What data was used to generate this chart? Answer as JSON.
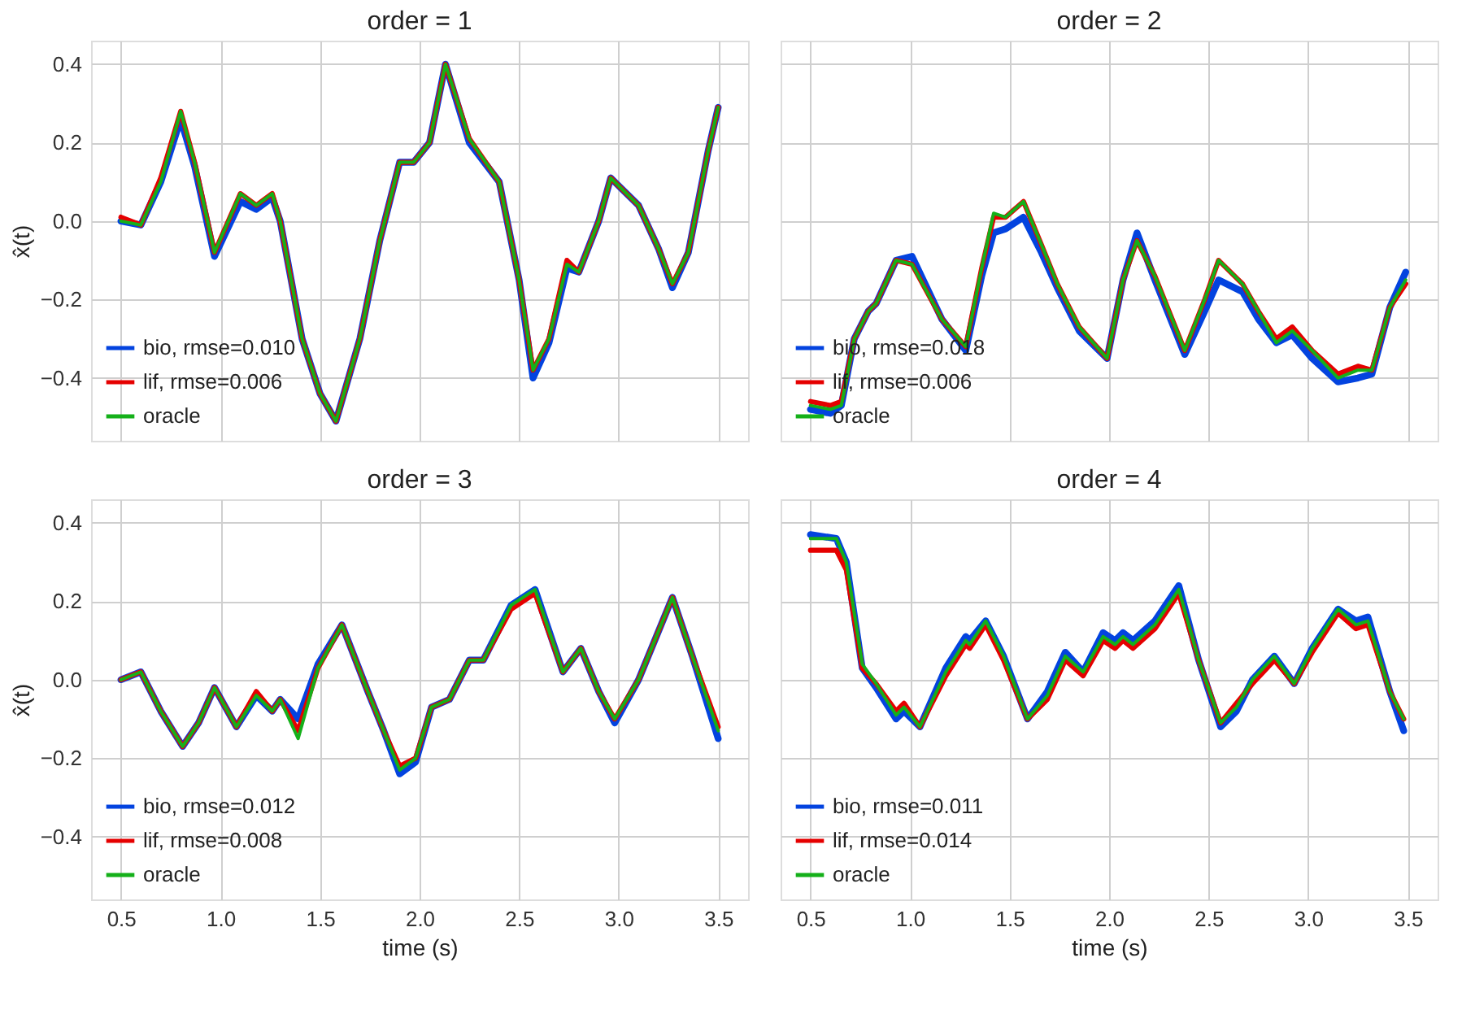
{
  "chart_data": [
    {
      "type": "line",
      "title": "order = 1",
      "ylabel": "x̂(t)",
      "xlim": [
        0.35,
        3.65
      ],
      "ylim": [
        -0.56,
        0.46
      ],
      "xticks": [
        0.5,
        1,
        1.5,
        2,
        2.5,
        3,
        3.5
      ],
      "yticks": [
        {
          "value": -0.4,
          "label": "−0.4"
        },
        {
          "value": -0.2,
          "label": "−0.2"
        },
        {
          "value": 0,
          "label": "0.0"
        },
        0.2,
        0.4
      ],
      "tick_labels": "y",
      "grid": true,
      "legend": "bottom left",
      "line_style": "solid",
      "marker": "none",
      "series": [
        {
          "name": "bio, rmse=0.010",
          "color": "#0343df",
          "x": [
            0.5,
            0.6,
            0.7,
            0.8,
            0.87,
            0.97,
            1.1,
            1.18,
            1.26,
            1.3,
            1.41,
            1.5,
            1.58,
            1.7,
            1.8,
            1.9,
            1.97,
            2.05,
            2.13,
            2.25,
            2.4,
            2.5,
            2.57,
            2.65,
            2.74,
            2.8,
            2.9,
            2.96,
            3.1,
            3.2,
            3.27,
            3.35,
            3.45,
            3.5
          ],
          "values": [
            0.0,
            -0.01,
            0.1,
            0.26,
            0.14,
            -0.09,
            0.05,
            0.03,
            0.06,
            0.0,
            -0.3,
            -0.44,
            -0.51,
            -0.3,
            -0.05,
            0.15,
            0.15,
            0.2,
            0.4,
            0.2,
            0.1,
            -0.15,
            -0.4,
            -0.31,
            -0.12,
            -0.13,
            0.0,
            0.11,
            0.04,
            -0.07,
            -0.17,
            -0.08,
            0.18,
            0.29
          ]
        },
        {
          "name": "lif, rmse=0.006",
          "color": "#e50000",
          "x": [
            0.5,
            0.6,
            0.7,
            0.8,
            0.87,
            0.97,
            1.1,
            1.18,
            1.26,
            1.3,
            1.41,
            1.5,
            1.58,
            1.7,
            1.8,
            1.9,
            1.97,
            2.05,
            2.13,
            2.25,
            2.4,
            2.5,
            2.57,
            2.65,
            2.74,
            2.8,
            2.9,
            2.96,
            3.1,
            3.2,
            3.27,
            3.35,
            3.45,
            3.5
          ],
          "values": [
            0.01,
            -0.01,
            0.11,
            0.28,
            0.15,
            -0.08,
            0.07,
            0.04,
            0.07,
            0.0,
            -0.3,
            -0.44,
            -0.51,
            -0.3,
            -0.05,
            0.15,
            0.15,
            0.2,
            0.4,
            0.21,
            0.1,
            -0.15,
            -0.38,
            -0.3,
            -0.1,
            -0.13,
            0.0,
            0.11,
            0.04,
            -0.07,
            -0.16,
            -0.08,
            0.18,
            0.29
          ]
        },
        {
          "name": "oracle",
          "color": "#15b01a",
          "x": [
            0.5,
            0.6,
            0.7,
            0.8,
            0.87,
            0.97,
            1.1,
            1.18,
            1.26,
            1.3,
            1.41,
            1.5,
            1.58,
            1.7,
            1.8,
            1.9,
            1.97,
            2.05,
            2.13,
            2.25,
            2.4,
            2.5,
            2.57,
            2.65,
            2.74,
            2.8,
            2.9,
            2.96,
            3.1,
            3.2,
            3.27,
            3.35,
            3.45,
            3.5
          ],
          "values": [
            0.0,
            -0.01,
            0.1,
            0.28,
            0.15,
            -0.08,
            0.07,
            0.04,
            0.07,
            0.0,
            -0.3,
            -0.44,
            -0.51,
            -0.3,
            -0.05,
            0.15,
            0.15,
            0.2,
            0.4,
            0.21,
            0.1,
            -0.15,
            -0.38,
            -0.3,
            -0.11,
            -0.13,
            0.0,
            0.11,
            0.04,
            -0.07,
            -0.16,
            -0.08,
            0.18,
            0.29
          ]
        }
      ]
    },
    {
      "type": "line",
      "title": "order = 2",
      "xlim": [
        0.35,
        3.65
      ],
      "ylim": [
        -0.56,
        0.46
      ],
      "xticks": [
        0.5,
        1,
        1.5,
        2,
        2.5,
        3,
        3.5
      ],
      "yticks": [
        -0.4,
        -0.2,
        0,
        0.2,
        0.4
      ],
      "tick_labels": false,
      "grid": true,
      "legend": "bottom left",
      "line_style": "solid",
      "marker": "none",
      "series": [
        {
          "name": "bio, rmse=0.018",
          "color": "#0343df",
          "x": [
            0.5,
            0.6,
            0.655,
            0.72,
            0.79,
            0.83,
            0.93,
            1.01,
            1.16,
            1.28,
            1.36,
            1.42,
            1.48,
            1.57,
            1.66,
            1.74,
            1.85,
            1.99,
            2.07,
            2.14,
            2.23,
            2.38,
            2.48,
            2.55,
            2.67,
            2.75,
            2.84,
            2.92,
            3.02,
            3.15,
            3.25,
            3.32,
            3.41,
            3.49
          ],
          "values": [
            -0.48,
            -0.49,
            -0.47,
            -0.3,
            -0.23,
            -0.21,
            -0.1,
            -0.09,
            -0.25,
            -0.33,
            -0.14,
            -0.03,
            -0.02,
            0.01,
            -0.08,
            -0.17,
            -0.28,
            -0.35,
            -0.15,
            -0.03,
            -0.15,
            -0.34,
            -0.23,
            -0.15,
            -0.18,
            -0.25,
            -0.31,
            -0.29,
            -0.35,
            -0.41,
            -0.4,
            -0.39,
            -0.22,
            -0.13
          ]
        },
        {
          "name": "lif, rmse=0.006",
          "color": "#e50000",
          "x": [
            0.5,
            0.6,
            0.655,
            0.72,
            0.79,
            0.83,
            0.93,
            1.01,
            1.16,
            1.28,
            1.36,
            1.42,
            1.48,
            1.57,
            1.66,
            1.74,
            1.85,
            1.99,
            2.07,
            2.14,
            2.23,
            2.38,
            2.48,
            2.55,
            2.67,
            2.75,
            2.84,
            2.92,
            3.02,
            3.15,
            3.25,
            3.32,
            3.41,
            3.49
          ],
          "values": [
            -0.46,
            -0.47,
            -0.46,
            -0.3,
            -0.23,
            -0.21,
            -0.1,
            -0.11,
            -0.25,
            -0.32,
            -0.12,
            0.01,
            0.01,
            0.05,
            -0.06,
            -0.16,
            -0.27,
            -0.35,
            -0.15,
            -0.05,
            -0.14,
            -0.33,
            -0.2,
            -0.1,
            -0.16,
            -0.23,
            -0.3,
            -0.27,
            -0.33,
            -0.39,
            -0.37,
            -0.38,
            -0.22,
            -0.16
          ]
        },
        {
          "name": "oracle",
          "color": "#15b01a",
          "x": [
            0.5,
            0.6,
            0.655,
            0.72,
            0.79,
            0.83,
            0.93,
            1.01,
            1.16,
            1.28,
            1.36,
            1.42,
            1.48,
            1.57,
            1.66,
            1.74,
            1.85,
            1.99,
            2.07,
            2.14,
            2.23,
            2.38,
            2.48,
            2.55,
            2.67,
            2.75,
            2.84,
            2.92,
            3.02,
            3.15,
            3.25,
            3.32,
            3.41,
            3.49
          ],
          "values": [
            -0.47,
            -0.48,
            -0.47,
            -0.3,
            -0.23,
            -0.21,
            -0.1,
            -0.11,
            -0.25,
            -0.32,
            -0.12,
            0.02,
            0.01,
            0.05,
            -0.06,
            -0.16,
            -0.27,
            -0.35,
            -0.15,
            -0.05,
            -0.14,
            -0.33,
            -0.2,
            -0.1,
            -0.16,
            -0.23,
            -0.31,
            -0.28,
            -0.33,
            -0.4,
            -0.38,
            -0.38,
            -0.22,
            -0.15
          ]
        }
      ]
    },
    {
      "type": "line",
      "title": "order = 3",
      "xlabel": "time (s)",
      "ylabel": "x̂(t)",
      "xlim": [
        0.35,
        3.65
      ],
      "ylim": [
        -0.56,
        0.46
      ],
      "xticks": [
        0.5,
        {
          "value": 1,
          "label": "1.0"
        },
        1.5,
        {
          "value": 2,
          "label": "2.0"
        },
        2.5,
        {
          "value": 3,
          "label": "3.0"
        },
        3.5
      ],
      "yticks": [
        {
          "value": -0.4,
          "label": "−0.4"
        },
        {
          "value": -0.2,
          "label": "−0.2"
        },
        {
          "value": 0,
          "label": "0.0"
        },
        0.2,
        0.4
      ],
      "grid": true,
      "legend": "bottom left",
      "line_style": "solid",
      "marker": "none",
      "series": [
        {
          "name": "bio, rmse=0.012",
          "color": "#0343df",
          "x": [
            0.5,
            0.6,
            0.7,
            0.81,
            0.89,
            0.97,
            1.08,
            1.18,
            1.26,
            1.3,
            1.39,
            1.49,
            1.61,
            1.74,
            1.82,
            1.9,
            1.98,
            2.06,
            2.15,
            2.25,
            2.32,
            2.46,
            2.58,
            2.72,
            2.81,
            2.9,
            2.98,
            3.1,
            3.27,
            3.37,
            3.5
          ],
          "values": [
            0.0,
            0.02,
            -0.08,
            -0.17,
            -0.11,
            -0.02,
            -0.12,
            -0.04,
            -0.08,
            -0.05,
            -0.1,
            0.04,
            0.14,
            -0.03,
            -0.13,
            -0.24,
            -0.21,
            -0.07,
            -0.05,
            0.05,
            0.05,
            0.19,
            0.23,
            0.02,
            0.08,
            -0.03,
            -0.11,
            0.0,
            0.21,
            0.06,
            -0.15
          ]
        },
        {
          "name": "lif, rmse=0.008",
          "color": "#e50000",
          "x": [
            0.5,
            0.6,
            0.7,
            0.81,
            0.89,
            0.97,
            1.08,
            1.18,
            1.26,
            1.3,
            1.39,
            1.49,
            1.61,
            1.74,
            1.82,
            1.9,
            1.98,
            2.06,
            2.15,
            2.25,
            2.32,
            2.46,
            2.58,
            2.72,
            2.81,
            2.9,
            2.98,
            3.1,
            3.27,
            3.37,
            3.5
          ],
          "values": [
            0.0,
            0.02,
            -0.08,
            -0.17,
            -0.11,
            -0.02,
            -0.12,
            -0.03,
            -0.08,
            -0.05,
            -0.13,
            0.03,
            0.14,
            -0.03,
            -0.13,
            -0.22,
            -0.2,
            -0.07,
            -0.05,
            0.05,
            0.05,
            0.18,
            0.22,
            0.02,
            0.08,
            -0.03,
            -0.1,
            0.0,
            0.21,
            0.06,
            -0.12
          ]
        },
        {
          "name": "oracle",
          "color": "#15b01a",
          "x": [
            0.5,
            0.6,
            0.7,
            0.81,
            0.89,
            0.97,
            1.08,
            1.18,
            1.26,
            1.3,
            1.39,
            1.49,
            1.61,
            1.74,
            1.82,
            1.9,
            1.98,
            2.06,
            2.15,
            2.25,
            2.32,
            2.46,
            2.58,
            2.72,
            2.81,
            2.9,
            2.98,
            3.1,
            3.27,
            3.37,
            3.5
          ],
          "values": [
            0.0,
            0.02,
            -0.08,
            -0.17,
            -0.11,
            -0.02,
            -0.12,
            -0.04,
            -0.08,
            -0.05,
            -0.15,
            0.03,
            0.14,
            -0.03,
            -0.13,
            -0.23,
            -0.2,
            -0.07,
            -0.05,
            0.05,
            0.05,
            0.19,
            0.23,
            0.02,
            0.08,
            -0.03,
            -0.1,
            0.0,
            0.21,
            0.06,
            -0.13
          ]
        }
      ]
    },
    {
      "type": "line",
      "title": "order = 4",
      "xlabel": "time (s)",
      "xlim": [
        0.35,
        3.65
      ],
      "ylim": [
        -0.56,
        0.46
      ],
      "xticks": [
        0.5,
        {
          "value": 1,
          "label": "1.0"
        },
        1.5,
        {
          "value": 2,
          "label": "2.0"
        },
        2.5,
        {
          "value": 3,
          "label": "3.0"
        },
        3.5
      ],
      "yticks": [
        -0.4,
        -0.2,
        0,
        0.2,
        0.4
      ],
      "tick_labels": "x",
      "grid": true,
      "legend": "bottom left",
      "line_style": "solid",
      "marker": "none",
      "series": [
        {
          "name": "bio, rmse=0.011",
          "color": "#0343df",
          "x": [
            0.5,
            0.63,
            0.68,
            0.76,
            0.83,
            0.93,
            0.97,
            1.05,
            1.18,
            1.28,
            1.3,
            1.38,
            1.47,
            1.59,
            1.69,
            1.78,
            1.87,
            1.97,
            2.03,
            2.07,
            2.12,
            2.23,
            2.35,
            2.45,
            2.56,
            2.64,
            2.72,
            2.83,
            2.93,
            3.02,
            3.15,
            3.24,
            3.3,
            3.41,
            3.48
          ],
          "values": [
            0.37,
            0.36,
            0.3,
            0.03,
            -0.02,
            -0.1,
            -0.08,
            -0.12,
            0.03,
            0.11,
            0.1,
            0.15,
            0.06,
            -0.1,
            -0.03,
            0.07,
            0.02,
            0.12,
            0.1,
            0.12,
            0.1,
            0.15,
            0.24,
            0.05,
            -0.12,
            -0.08,
            0.0,
            0.06,
            -0.01,
            0.08,
            0.18,
            0.15,
            0.16,
            -0.03,
            -0.13
          ]
        },
        {
          "name": "lif, rmse=0.014",
          "color": "#e50000",
          "x": [
            0.5,
            0.63,
            0.68,
            0.76,
            0.83,
            0.93,
            0.97,
            1.05,
            1.18,
            1.28,
            1.3,
            1.38,
            1.47,
            1.59,
            1.69,
            1.78,
            1.87,
            1.97,
            2.03,
            2.07,
            2.12,
            2.23,
            2.35,
            2.45,
            2.56,
            2.64,
            2.72,
            2.83,
            2.93,
            3.02,
            3.15,
            3.24,
            3.3,
            3.41,
            3.48
          ],
          "values": [
            0.33,
            0.33,
            0.28,
            0.03,
            -0.01,
            -0.08,
            -0.06,
            -0.12,
            0.01,
            0.09,
            0.08,
            0.14,
            0.05,
            -0.1,
            -0.05,
            0.05,
            0.01,
            0.1,
            0.08,
            0.1,
            0.08,
            0.13,
            0.22,
            0.05,
            -0.11,
            -0.06,
            -0.01,
            0.05,
            -0.01,
            0.07,
            0.17,
            0.13,
            0.14,
            -0.03,
            -0.1
          ]
        },
        {
          "name": "oracle",
          "color": "#15b01a",
          "x": [
            0.5,
            0.63,
            0.68,
            0.76,
            0.83,
            0.93,
            0.97,
            1.05,
            1.18,
            1.28,
            1.3,
            1.38,
            1.47,
            1.59,
            1.69,
            1.78,
            1.87,
            1.97,
            2.03,
            2.07,
            2.12,
            2.23,
            2.35,
            2.45,
            2.56,
            2.64,
            2.72,
            2.83,
            2.93,
            3.02,
            3.15,
            3.24,
            3.3,
            3.41,
            3.48
          ],
          "values": [
            0.36,
            0.36,
            0.3,
            0.04,
            -0.01,
            -0.09,
            -0.07,
            -0.12,
            0.02,
            0.1,
            0.09,
            0.15,
            0.06,
            -0.1,
            -0.04,
            0.06,
            0.02,
            0.11,
            0.09,
            0.11,
            0.09,
            0.14,
            0.23,
            0.05,
            -0.11,
            -0.07,
            0.0,
            0.06,
            -0.01,
            0.08,
            0.18,
            0.14,
            0.15,
            -0.03,
            -0.1
          ]
        }
      ]
    }
  ]
}
